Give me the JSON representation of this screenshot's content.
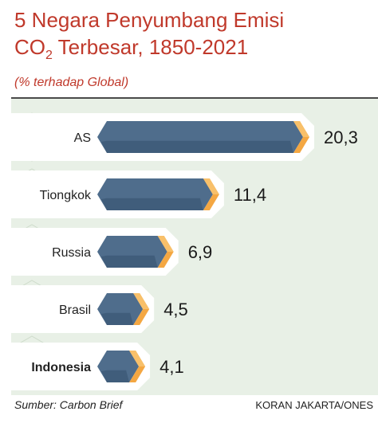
{
  "title": {
    "line1": "5 Negara Penyumbang Emisi",
    "line2_pre": "CO",
    "line2_sub": "2",
    "line2_post": " Terbesar, 1850-2021"
  },
  "subtitle": "(% terhadap Global)",
  "chart_data": {
    "type": "bar",
    "orientation": "horizontal",
    "categories": [
      "AS",
      "Tiongkok",
      "Russia",
      "Brasil",
      "Indonesia"
    ],
    "values": [
      20.3,
      11.4,
      6.9,
      4.5,
      4.1
    ],
    "value_labels": [
      "20,3",
      "11,4",
      "6,9",
      "4,5",
      "4,1"
    ],
    "title": "5 Negara Penyumbang Emisi CO2 Terbesar, 1850-2021",
    "subtitle": "(% terhadap Global)",
    "highlight_category": "Indonesia",
    "grid": false,
    "legend": "none"
  },
  "colors": {
    "title": "#c0392b",
    "bar": "#4f6d8c",
    "bar_dark": "#2f4a66",
    "bar_end": "#f4a742",
    "panel": "#e8f0e6",
    "label_box": "#ffffff"
  },
  "footer": {
    "source": "Sumber: Carbon Brief",
    "credit": "KORAN JAKARTA/ONES"
  }
}
